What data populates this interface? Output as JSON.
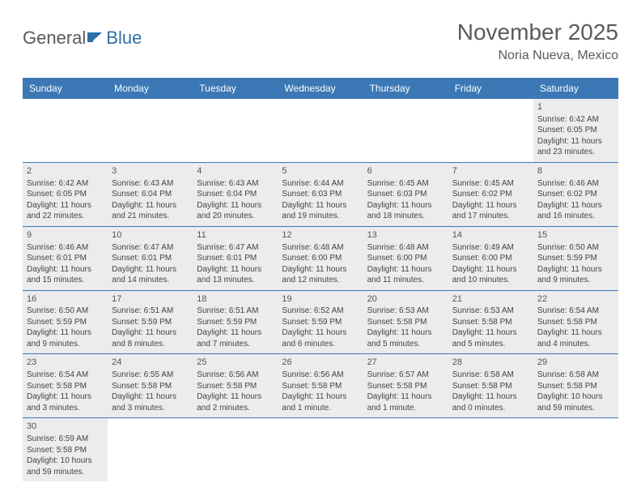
{
  "logo": {
    "text1": "General",
    "text2": "Blue"
  },
  "header": {
    "month_title": "November 2025",
    "location": "Noria Nueva, Mexico"
  },
  "colors": {
    "header_bg": "#3b78b5",
    "cell_bg": "#ececec",
    "text": "#444444"
  },
  "weekdays": [
    "Sunday",
    "Monday",
    "Tuesday",
    "Wednesday",
    "Thursday",
    "Friday",
    "Saturday"
  ],
  "weeks": [
    [
      null,
      null,
      null,
      null,
      null,
      null,
      {
        "day": "1",
        "sunrise": "Sunrise: 6:42 AM",
        "sunset": "Sunset: 6:05 PM",
        "dl1": "Daylight: 11 hours",
        "dl2": "and 23 minutes."
      }
    ],
    [
      {
        "day": "2",
        "sunrise": "Sunrise: 6:42 AM",
        "sunset": "Sunset: 6:05 PM",
        "dl1": "Daylight: 11 hours",
        "dl2": "and 22 minutes."
      },
      {
        "day": "3",
        "sunrise": "Sunrise: 6:43 AM",
        "sunset": "Sunset: 6:04 PM",
        "dl1": "Daylight: 11 hours",
        "dl2": "and 21 minutes."
      },
      {
        "day": "4",
        "sunrise": "Sunrise: 6:43 AM",
        "sunset": "Sunset: 6:04 PM",
        "dl1": "Daylight: 11 hours",
        "dl2": "and 20 minutes."
      },
      {
        "day": "5",
        "sunrise": "Sunrise: 6:44 AM",
        "sunset": "Sunset: 6:03 PM",
        "dl1": "Daylight: 11 hours",
        "dl2": "and 19 minutes."
      },
      {
        "day": "6",
        "sunrise": "Sunrise: 6:45 AM",
        "sunset": "Sunset: 6:03 PM",
        "dl1": "Daylight: 11 hours",
        "dl2": "and 18 minutes."
      },
      {
        "day": "7",
        "sunrise": "Sunrise: 6:45 AM",
        "sunset": "Sunset: 6:02 PM",
        "dl1": "Daylight: 11 hours",
        "dl2": "and 17 minutes."
      },
      {
        "day": "8",
        "sunrise": "Sunrise: 6:46 AM",
        "sunset": "Sunset: 6:02 PM",
        "dl1": "Daylight: 11 hours",
        "dl2": "and 16 minutes."
      }
    ],
    [
      {
        "day": "9",
        "sunrise": "Sunrise: 6:46 AM",
        "sunset": "Sunset: 6:01 PM",
        "dl1": "Daylight: 11 hours",
        "dl2": "and 15 minutes."
      },
      {
        "day": "10",
        "sunrise": "Sunrise: 6:47 AM",
        "sunset": "Sunset: 6:01 PM",
        "dl1": "Daylight: 11 hours",
        "dl2": "and 14 minutes."
      },
      {
        "day": "11",
        "sunrise": "Sunrise: 6:47 AM",
        "sunset": "Sunset: 6:01 PM",
        "dl1": "Daylight: 11 hours",
        "dl2": "and 13 minutes."
      },
      {
        "day": "12",
        "sunrise": "Sunrise: 6:48 AM",
        "sunset": "Sunset: 6:00 PM",
        "dl1": "Daylight: 11 hours",
        "dl2": "and 12 minutes."
      },
      {
        "day": "13",
        "sunrise": "Sunrise: 6:48 AM",
        "sunset": "Sunset: 6:00 PM",
        "dl1": "Daylight: 11 hours",
        "dl2": "and 11 minutes."
      },
      {
        "day": "14",
        "sunrise": "Sunrise: 6:49 AM",
        "sunset": "Sunset: 6:00 PM",
        "dl1": "Daylight: 11 hours",
        "dl2": "and 10 minutes."
      },
      {
        "day": "15",
        "sunrise": "Sunrise: 6:50 AM",
        "sunset": "Sunset: 5:59 PM",
        "dl1": "Daylight: 11 hours",
        "dl2": "and 9 minutes."
      }
    ],
    [
      {
        "day": "16",
        "sunrise": "Sunrise: 6:50 AM",
        "sunset": "Sunset: 5:59 PM",
        "dl1": "Daylight: 11 hours",
        "dl2": "and 9 minutes."
      },
      {
        "day": "17",
        "sunrise": "Sunrise: 6:51 AM",
        "sunset": "Sunset: 5:59 PM",
        "dl1": "Daylight: 11 hours",
        "dl2": "and 8 minutes."
      },
      {
        "day": "18",
        "sunrise": "Sunrise: 6:51 AM",
        "sunset": "Sunset: 5:59 PM",
        "dl1": "Daylight: 11 hours",
        "dl2": "and 7 minutes."
      },
      {
        "day": "19",
        "sunrise": "Sunrise: 6:52 AM",
        "sunset": "Sunset: 5:59 PM",
        "dl1": "Daylight: 11 hours",
        "dl2": "and 6 minutes."
      },
      {
        "day": "20",
        "sunrise": "Sunrise: 6:53 AM",
        "sunset": "Sunset: 5:58 PM",
        "dl1": "Daylight: 11 hours",
        "dl2": "and 5 minutes."
      },
      {
        "day": "21",
        "sunrise": "Sunrise: 6:53 AM",
        "sunset": "Sunset: 5:58 PM",
        "dl1": "Daylight: 11 hours",
        "dl2": "and 5 minutes."
      },
      {
        "day": "22",
        "sunrise": "Sunrise: 6:54 AM",
        "sunset": "Sunset: 5:58 PM",
        "dl1": "Daylight: 11 hours",
        "dl2": "and 4 minutes."
      }
    ],
    [
      {
        "day": "23",
        "sunrise": "Sunrise: 6:54 AM",
        "sunset": "Sunset: 5:58 PM",
        "dl1": "Daylight: 11 hours",
        "dl2": "and 3 minutes."
      },
      {
        "day": "24",
        "sunrise": "Sunrise: 6:55 AM",
        "sunset": "Sunset: 5:58 PM",
        "dl1": "Daylight: 11 hours",
        "dl2": "and 3 minutes."
      },
      {
        "day": "25",
        "sunrise": "Sunrise: 6:56 AM",
        "sunset": "Sunset: 5:58 PM",
        "dl1": "Daylight: 11 hours",
        "dl2": "and 2 minutes."
      },
      {
        "day": "26",
        "sunrise": "Sunrise: 6:56 AM",
        "sunset": "Sunset: 5:58 PM",
        "dl1": "Daylight: 11 hours",
        "dl2": "and 1 minute."
      },
      {
        "day": "27",
        "sunrise": "Sunrise: 6:57 AM",
        "sunset": "Sunset: 5:58 PM",
        "dl1": "Daylight: 11 hours",
        "dl2": "and 1 minute."
      },
      {
        "day": "28",
        "sunrise": "Sunrise: 6:58 AM",
        "sunset": "Sunset: 5:58 PM",
        "dl1": "Daylight: 11 hours",
        "dl2": "and 0 minutes."
      },
      {
        "day": "29",
        "sunrise": "Sunrise: 6:58 AM",
        "sunset": "Sunset: 5:58 PM",
        "dl1": "Daylight: 10 hours",
        "dl2": "and 59 minutes."
      }
    ],
    [
      {
        "day": "30",
        "sunrise": "Sunrise: 6:59 AM",
        "sunset": "Sunset: 5:58 PM",
        "dl1": "Daylight: 10 hours",
        "dl2": "and 59 minutes."
      },
      null,
      null,
      null,
      null,
      null,
      null
    ]
  ]
}
